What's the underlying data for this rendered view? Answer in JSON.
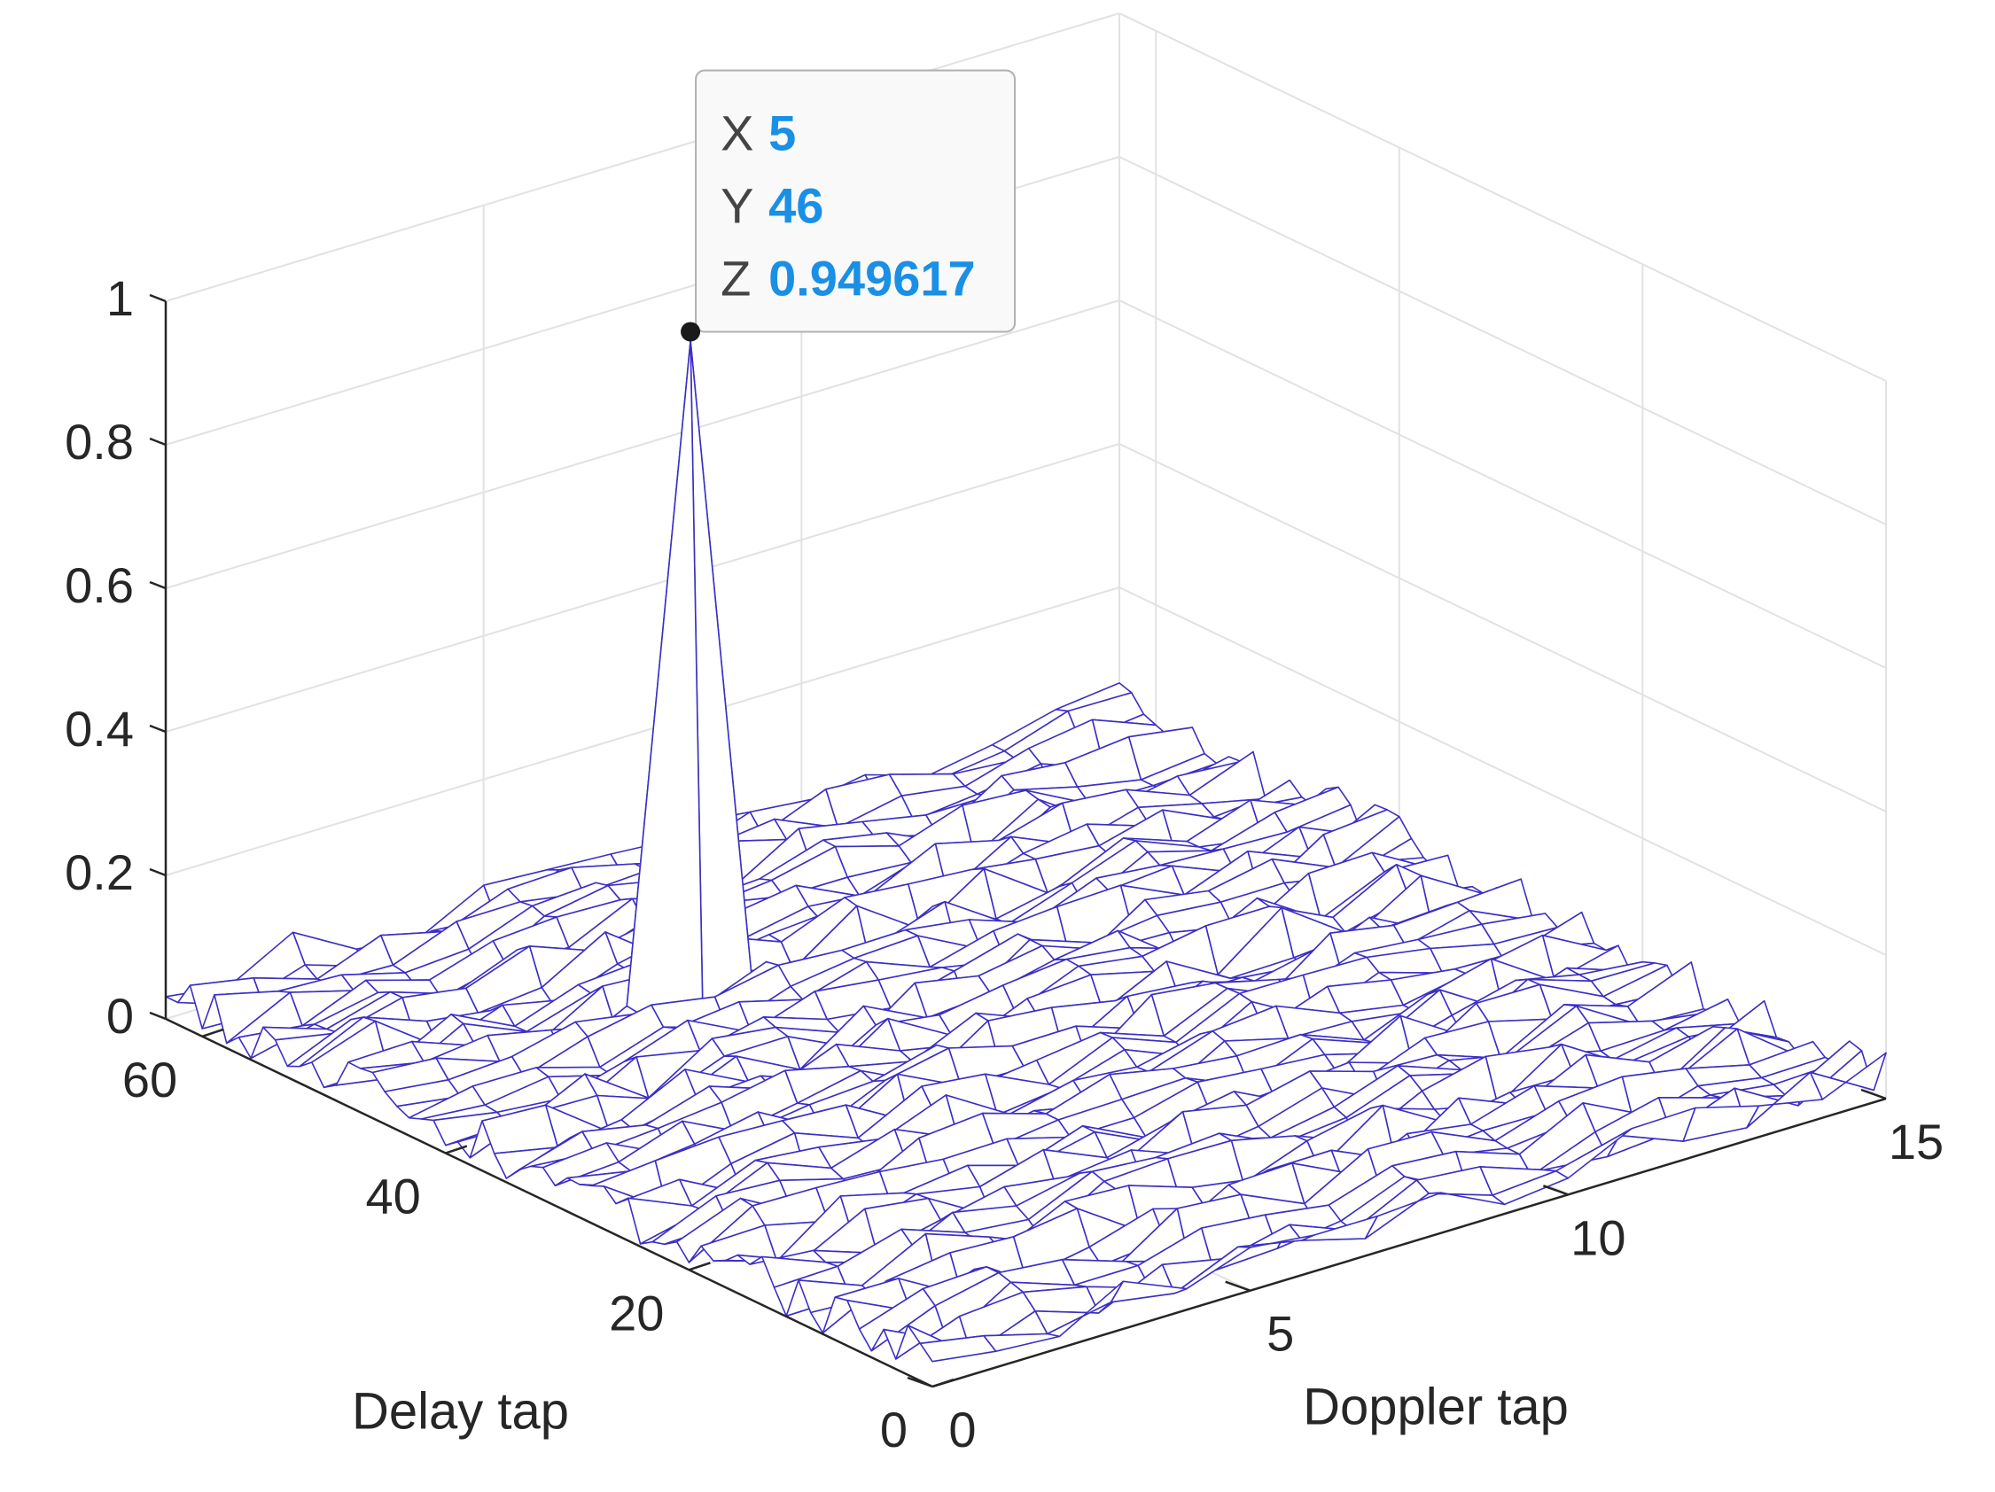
{
  "chart_data": {
    "type": "surface",
    "xlabel": "Doppler tap",
    "ylabel": "Delay tap",
    "zlabel": "",
    "xlim": [
      0,
      15
    ],
    "ylim": [
      0,
      63
    ],
    "zlim": [
      0,
      1
    ],
    "x_ticks": [
      "0",
      "5",
      "10",
      "15"
    ],
    "y_ticks": [
      "0",
      "20",
      "40",
      "60"
    ],
    "z_ticks": [
      "0",
      "0.2",
      "0.4",
      "0.6",
      "0.8",
      "1"
    ],
    "grid": true,
    "x_values": [
      0,
      1,
      2,
      3,
      4,
      5,
      6,
      7,
      8,
      9,
      10,
      11,
      12,
      13,
      14,
      15
    ],
    "y_step": 1,
    "noise_floor_level": 0.05,
    "peak": {
      "x": 5,
      "y": 46,
      "z": 0.949617
    },
    "mesh_color": "#3b2fc4"
  },
  "datatip": {
    "x_key": "X",
    "x_value": "5",
    "y_key": "Y",
    "y_value": "46",
    "z_key": "Z",
    "z_value": "0.949617",
    "value_color": "#1a8fe6"
  }
}
